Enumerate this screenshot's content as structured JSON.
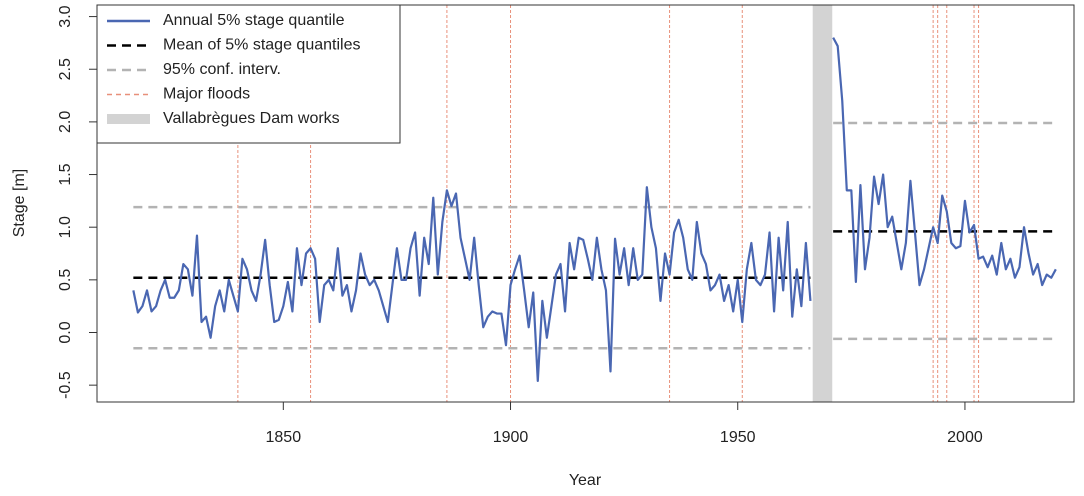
{
  "chart_data": {
    "type": "line",
    "xlabel": "Year",
    "ylabel": "Stage [m]",
    "xlim": [
      1809,
      2024
    ],
    "ylim": [
      -0.66,
      3.11
    ],
    "xticks": [
      1850,
      1900,
      1950,
      2000
    ],
    "yticks": [
      -0.5,
      {
        "value": 0,
        "label": "0.0"
      },
      0.5,
      {
        "value": 1,
        "label": "1.0"
      },
      1.5,
      {
        "value": 2,
        "label": "2.0"
      },
      2.5,
      {
        "value": 3,
        "label": "3.0"
      }
    ],
    "legend": "upper left",
    "x": [
      1817,
      1818,
      1819,
      1820,
      1821,
      1822,
      1823,
      1824,
      1825,
      1826,
      1827,
      1828,
      1829,
      1830,
      1831,
      1832,
      1833,
      1834,
      1835,
      1836,
      1837,
      1838,
      1839,
      1840,
      1841,
      1842,
      1843,
      1844,
      1845,
      1846,
      1847,
      1848,
      1849,
      1850,
      1851,
      1852,
      1853,
      1854,
      1855,
      1856,
      1857,
      1858,
      1859,
      1860,
      1861,
      1862,
      1863,
      1864,
      1865,
      1866,
      1867,
      1868,
      1869,
      1870,
      1871,
      1872,
      1873,
      1874,
      1875,
      1876,
      1877,
      1878,
      1879,
      1880,
      1881,
      1882,
      1883,
      1884,
      1885,
      1886,
      1887,
      1888,
      1889,
      1890,
      1891,
      1892,
      1893,
      1894,
      1895,
      1896,
      1897,
      1898,
      1899,
      1900,
      1901,
      1902,
      1903,
      1904,
      1905,
      1906,
      1907,
      1908,
      1909,
      1910,
      1911,
      1912,
      1913,
      1914,
      1915,
      1916,
      1917,
      1918,
      1919,
      1920,
      1921,
      1922,
      1923,
      1924,
      1925,
      1926,
      1927,
      1928,
      1929,
      1930,
      1931,
      1932,
      1933,
      1934,
      1935,
      1936,
      1937,
      1938,
      1939,
      1940,
      1941,
      1942,
      1943,
      1944,
      1945,
      1946,
      1947,
      1948,
      1949,
      1950,
      1951,
      1952,
      1953,
      1954,
      1955,
      1956,
      1957,
      1958,
      1959,
      1960,
      1961,
      1962,
      1963,
      1964,
      1965,
      1966,
      1967,
      1968,
      1969,
      1970,
      1971,
      1972,
      1973,
      1974,
      1975,
      1976,
      1977,
      1978,
      1979,
      1980,
      1981,
      1982,
      1983,
      1984,
      1985,
      1986,
      1987,
      1988,
      1989,
      1990,
      1991,
      1992,
      1993,
      1994,
      1995,
      1996,
      1997,
      1998,
      1999,
      2000,
      2001,
      2002,
      2003,
      2004,
      2005,
      2006,
      2007,
      2008,
      2009,
      2010,
      2011,
      2012,
      2013,
      2014,
      2015,
      2016,
      2017,
      2018,
      2019,
      2020
    ],
    "series": [
      {
        "name": "Annual 5% stage quantile",
        "color": "#4a67b2",
        "values": [
          0.4,
          0.19,
          0.25,
          0.4,
          0.2,
          0.25,
          0.4,
          0.5,
          0.33,
          0.33,
          0.4,
          0.65,
          0.6,
          0.35,
          0.92,
          0.1,
          0.15,
          -0.05,
          0.25,
          0.4,
          0.2,
          0.5,
          0.35,
          0.2,
          0.7,
          0.6,
          0.4,
          0.3,
          0.55,
          0.88,
          0.45,
          0.1,
          0.12,
          0.25,
          0.48,
          0.2,
          0.8,
          0.45,
          0.75,
          0.8,
          0.7,
          0.1,
          0.45,
          0.5,
          0.4,
          0.8,
          0.35,
          0.45,
          0.2,
          0.4,
          0.75,
          0.55,
          0.45,
          0.5,
          0.4,
          0.25,
          0.1,
          0.45,
          0.8,
          0.5,
          0.5,
          0.8,
          0.95,
          0.35,
          0.9,
          0.65,
          1.28,
          0.55,
          1.05,
          1.35,
          1.2,
          1.32,
          0.9,
          0.7,
          0.5,
          0.9,
          0.45,
          0.05,
          0.15,
          0.2,
          0.18,
          0.18,
          -0.12,
          0.45,
          0.6,
          0.73,
          0.4,
          0.05,
          0.38,
          -0.46,
          0.3,
          -0.05,
          0.25,
          0.55,
          0.65,
          0.2,
          0.85,
          0.6,
          0.9,
          0.88,
          0.7,
          0.5,
          0.9,
          0.6,
          0.4,
          -0.37,
          0.89,
          0.55,
          0.8,
          0.45,
          0.8,
          0.5,
          0.55,
          1.38,
          1.0,
          0.8,
          0.3,
          0.75,
          0.55,
          0.95,
          1.07,
          0.9,
          0.6,
          0.5,
          1.05,
          0.75,
          0.65,
          0.4,
          0.45,
          0.55,
          0.3,
          0.45,
          0.2,
          0.5,
          0.1,
          0.6,
          0.85,
          0.5,
          0.45,
          0.55,
          0.95,
          0.2,
          0.9,
          0.4,
          1.05,
          0.15,
          0.6,
          0.25,
          0.85,
          0.3,
          null,
          null,
          null,
          null,
          2.8,
          2.72,
          2.2,
          1.35,
          1.35,
          0.48,
          1.4,
          0.6,
          0.9,
          1.48,
          1.22,
          1.5,
          1.0,
          1.1,
          0.85,
          0.6,
          0.85,
          1.44,
          0.95,
          0.45,
          0.6,
          0.8,
          1.0,
          0.85,
          1.3,
          1.15,
          0.85,
          0.8,
          0.82,
          1.25,
          0.95,
          1.02,
          0.7,
          0.72,
          0.62,
          0.73,
          0.55,
          0.85,
          0.6,
          0.7,
          0.52,
          0.62,
          1.0,
          0.75,
          0.55,
          0.65,
          0.45,
          0.55,
          0.52,
          0.6
        ]
      }
    ],
    "reference_lines": [
      {
        "name": "Mean of 5% stage quantiles",
        "color": "#000000",
        "segments": [
          {
            "x": [
              1817,
              1966
            ],
            "y": 0.52
          },
          {
            "x": [
              1971,
              2020
            ],
            "y": 0.96
          }
        ]
      },
      {
        "name": "95% conf. interv.",
        "color": "#b3b3b3",
        "segments": [
          {
            "x": [
              1817,
              1966
            ],
            "y": 1.19
          },
          {
            "x": [
              1817,
              1966
            ],
            "y": -0.15
          },
          {
            "x": [
              1971,
              2020
            ],
            "y": 1.99
          },
          {
            "x": [
              1971,
              2020
            ],
            "y": -0.06
          }
        ]
      }
    ],
    "floods": {
      "name": "Major floods",
      "color": "#e8907a",
      "x": [
        1840,
        1856,
        1886,
        1900,
        1935,
        1951,
        1993,
        1994,
        1996,
        2002,
        2003
      ]
    },
    "dam_works": {
      "name": "Vallabrègues Dam works",
      "color": "#d3d3d3",
      "x": [
        1966.5,
        1970.8
      ]
    }
  }
}
